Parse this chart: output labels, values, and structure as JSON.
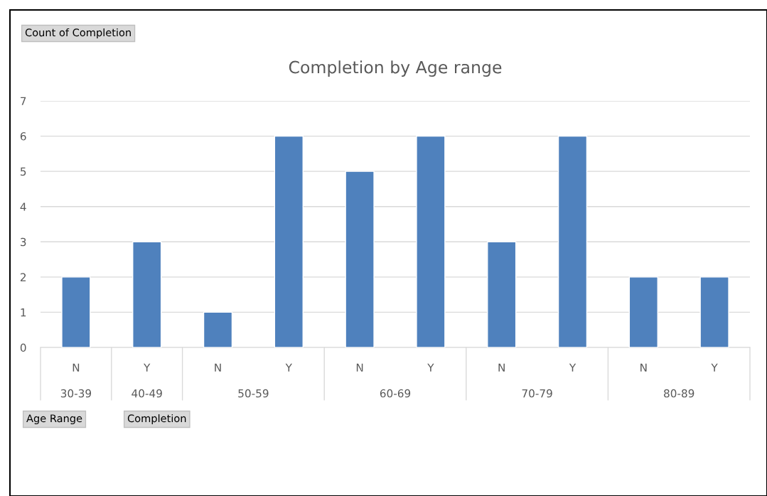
{
  "chart_data": {
    "type": "bar",
    "title": "Completion by Age range",
    "categories": [
      "N",
      "Y",
      "N",
      "Y",
      "N",
      "Y",
      "N",
      "Y",
      "N",
      "Y"
    ],
    "values": [
      2,
      3,
      1,
      6,
      5,
      6,
      3,
      6,
      2,
      2
    ],
    "color": "#4f81bd",
    "ylim": [
      0,
      7
    ],
    "yticks": [
      0,
      1,
      2,
      3,
      4,
      5,
      6,
      7
    ],
    "grid": "y",
    "annotations": [
      "Count of Completion",
      "Age Range",
      "Completion",
      "30-39",
      "40-49",
      "50-59",
      "60-69",
      "70-79",
      "80-89"
    ]
  }
}
